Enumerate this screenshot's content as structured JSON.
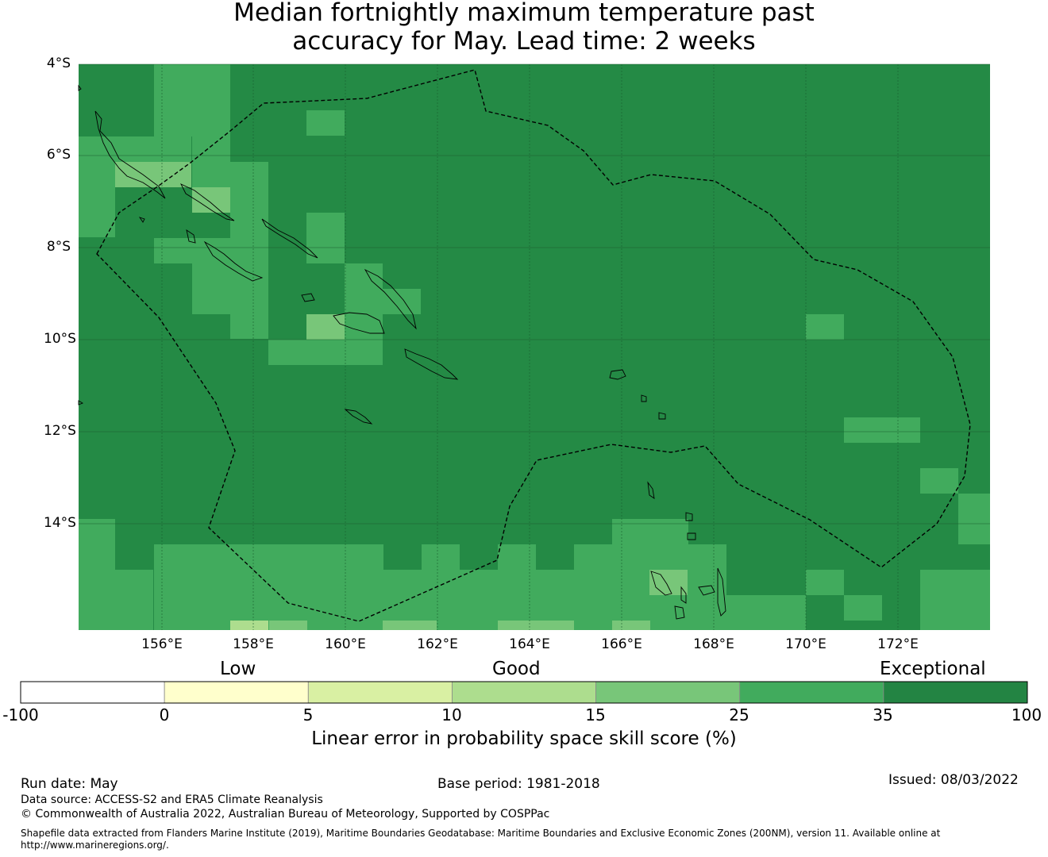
{
  "title": {
    "line1": "Median fortnightly maximum temperature past",
    "line2": "accuracy for May. Lead time: 2 weeks"
  },
  "map": {
    "lat_labels": [
      "4°S",
      "6°S",
      "8°S",
      "10°S",
      "12°S",
      "14°S"
    ],
    "lon_labels": [
      "156°E",
      "158°E",
      "160°E",
      "162°E",
      "164°E",
      "166°E",
      "168°E",
      "170°E",
      "172°E"
    ],
    "colors": {
      "exceptional_dark": "#248a45",
      "band_25_35": "#41ab5d",
      "band_15_25": "#78c679",
      "band_10_15": "#addd8e",
      "gridline": "#1a5c2e",
      "boundary": "#000000"
    }
  },
  "colorbar": {
    "categories": [
      "Low",
      "Good",
      "Exceptional"
    ],
    "ticks": [
      "-100",
      "0",
      "5",
      "10",
      "15",
      "25",
      "35",
      "100"
    ],
    "colors": [
      "#ffffff",
      "#ffffcc",
      "#d9f0a3",
      "#addd8e",
      "#78c679",
      "#41ab5d",
      "#238443"
    ],
    "title": "Linear error in probability space skill score (%)"
  },
  "footer": {
    "run_date": "Run date: May",
    "base_period": "Base period: 1981-2018",
    "issued": "Issued: 08/03/2022",
    "data_source": "Data source: ACCESS-S2 and ERA5 Climate Reanalysis",
    "copyright": "© Commonwealth of Australia 2022, Australian Bureau of Meteorology, Supported by COSPPac",
    "shapefile_line1": "Shapefile data extracted from Flanders Marine Institute (2019), Maritime Boundaries Geodatabase: Maritime Boundaries and Exclusive Economic Zones (200NM), version 11. Available online at",
    "shapefile_line2": "http://www.marineregions.org/."
  }
}
